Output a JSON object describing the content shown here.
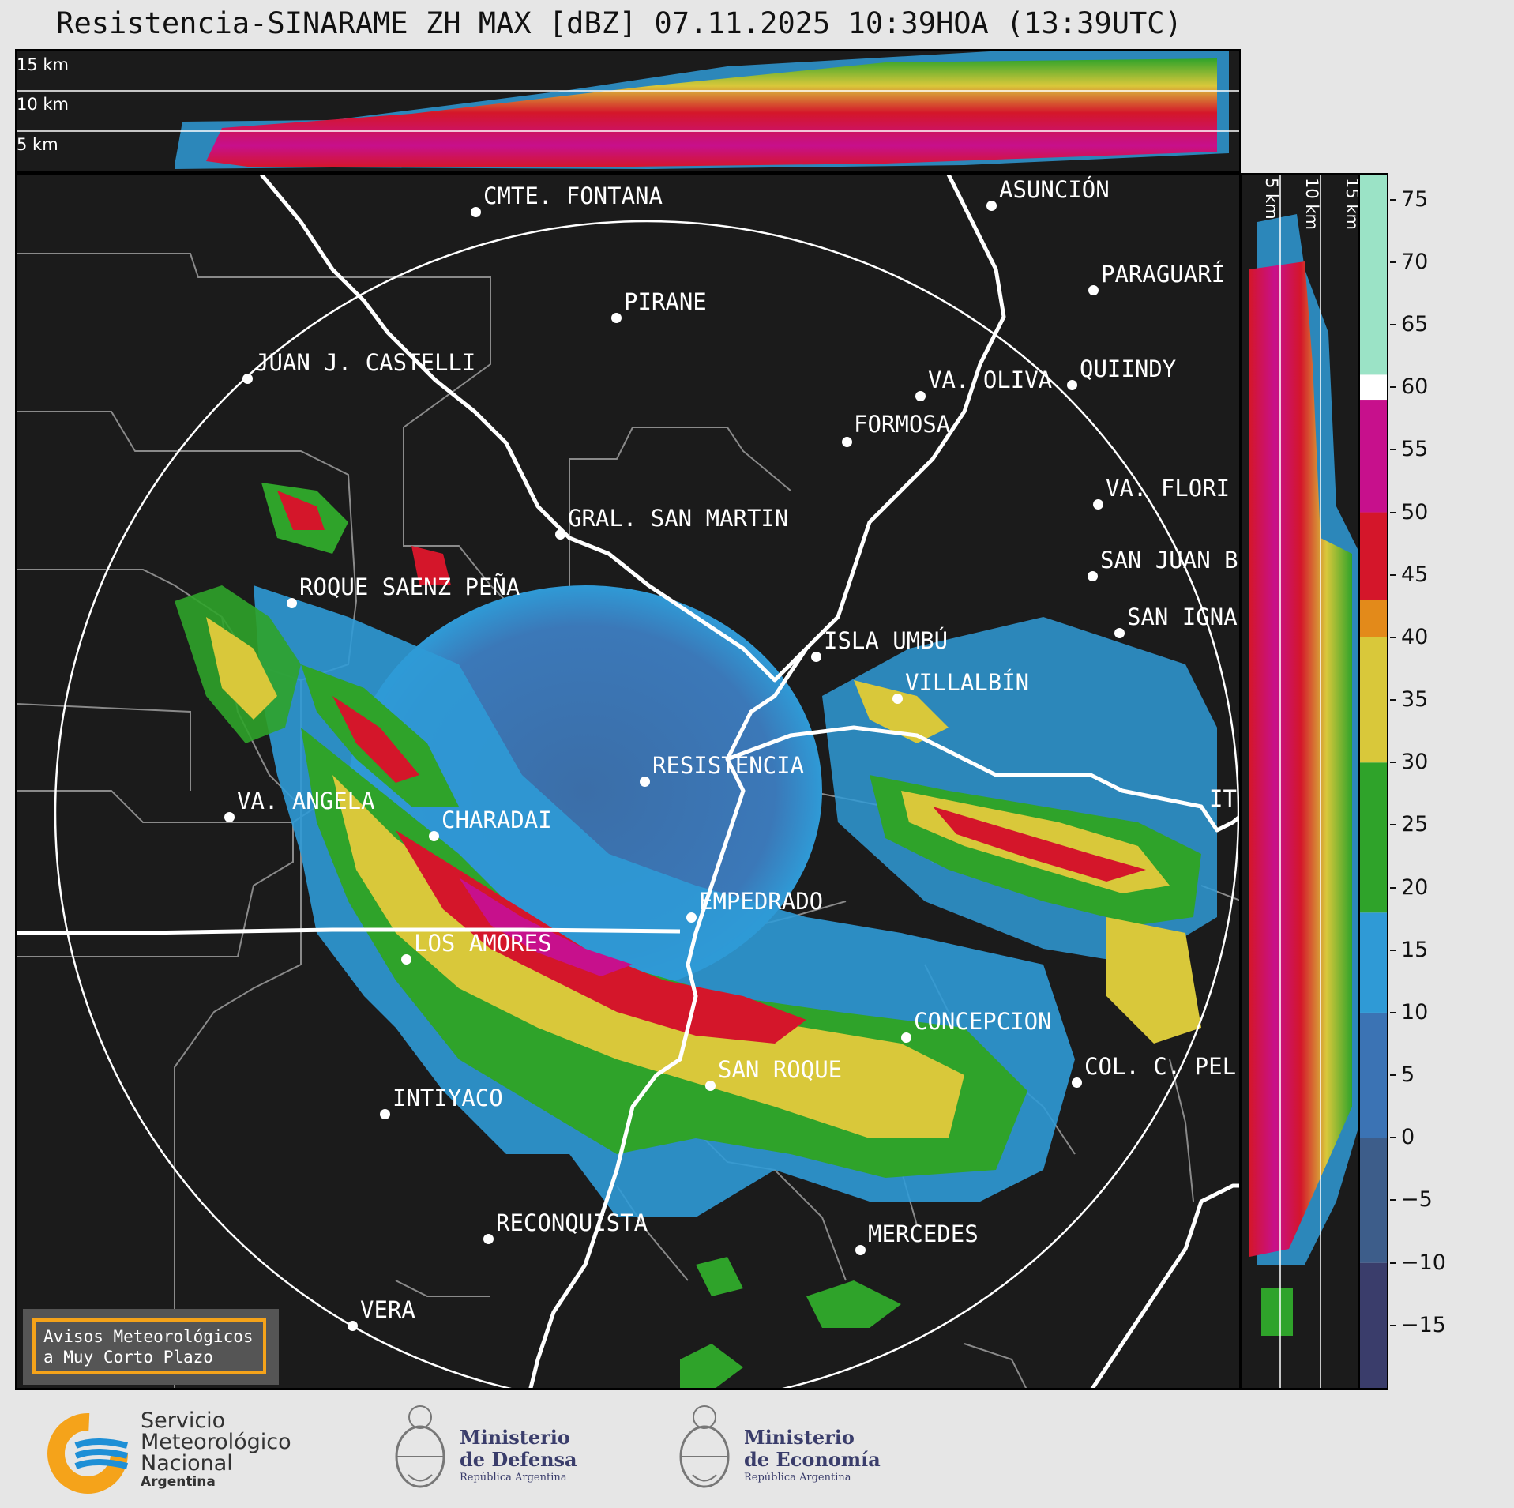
{
  "title": "Resistencia-SINARAME ZH MAX [dBZ] 07.11.2025 10:39HOA (13:39UTC)",
  "top_panel": {
    "altitude_labels": [
      "15 km",
      "10 km",
      "5 km"
    ]
  },
  "side_panel": {
    "altitude_labels": [
      "5 km",
      "10 km",
      "15 km"
    ]
  },
  "colorbar": {
    "ticks": [
      "75",
      "70",
      "65",
      "60",
      "55",
      "50",
      "45",
      "40",
      "35",
      "30",
      "25",
      "20",
      "15",
      "10",
      "5",
      "0",
      "−5",
      "−10",
      "−15"
    ],
    "range_dbz": [
      -20,
      77
    ],
    "bands": [
      {
        "from": -20,
        "to": -10,
        "color": "#3a3d6b"
      },
      {
        "from": -10,
        "to": 0,
        "color": "#3d5d8a"
      },
      {
        "from": 0,
        "to": 10,
        "color": "#3b73b4"
      },
      {
        "from": 10,
        "to": 18,
        "color": "#2f9ad6"
      },
      {
        "from": 18,
        "to": 30,
        "color": "#2fa32a"
      },
      {
        "from": 30,
        "to": 40,
        "color": "#d9c83a"
      },
      {
        "from": 40,
        "to": 43,
        "color": "#e38a1a"
      },
      {
        "from": 43,
        "to": 50,
        "color": "#d4162a"
      },
      {
        "from": 50,
        "to": 59,
        "color": "#c7108c"
      },
      {
        "from": 59,
        "to": 61,
        "color": "#ffffff"
      },
      {
        "from": 61,
        "to": 77,
        "color": "#9be3c6"
      }
    ]
  },
  "cities": [
    {
      "name": "CMTE. FONTANA"
    },
    {
      "name": "ASUNCIÓN"
    },
    {
      "name": "PARAGUARÍ"
    },
    {
      "name": "PIRANE"
    },
    {
      "name": "JUAN J. CASTELLI"
    },
    {
      "name": "VA. OLIVA"
    },
    {
      "name": "QUIINDY"
    },
    {
      "name": "FORMOSA"
    },
    {
      "name": "VA. FLORI"
    },
    {
      "name": "GRAL. SAN MARTIN"
    },
    {
      "name": "SAN JUAN B"
    },
    {
      "name": "ROQUE SAENZ PEÑA"
    },
    {
      "name": "SAN IGNA"
    },
    {
      "name": "ISLA UMBÚ"
    },
    {
      "name": "VILLALBÍN"
    },
    {
      "name": "RESISTENCIA"
    },
    {
      "name": "VA. ANGELA"
    },
    {
      "name": "CHARADAI"
    },
    {
      "name": "EMPEDRADO"
    },
    {
      "name": "LOS AMORES"
    },
    {
      "name": "CONCEPCION"
    },
    {
      "name": "SAN ROQUE"
    },
    {
      "name": "COL. C. PEL"
    },
    {
      "name": "INTIYACO"
    },
    {
      "name": "RECONQUISTA"
    },
    {
      "name": "MERCEDES"
    },
    {
      "name": "VERA"
    },
    {
      "name": "IT"
    }
  ],
  "aviso": {
    "line1": "Avisos Meteorológicos",
    "line2": "a Muy Corto Plazo"
  },
  "logos": {
    "smn": {
      "line1": "Servicio",
      "line2": "Meteorológico",
      "line3": "Nacional",
      "line4": "Argentina"
    },
    "defensa": {
      "line1": "Ministerio",
      "line2": "de Defensa",
      "line3": "República Argentina"
    },
    "economia": {
      "line1": "Ministerio",
      "line2": "de Economía",
      "line3": "República Argentina"
    }
  }
}
